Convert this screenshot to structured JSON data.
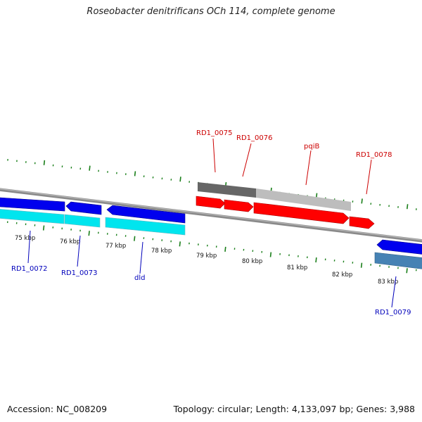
{
  "title": "Roseobacter denitrificans OCh 114, complete genome",
  "footer": {
    "accession": "Accession: NC_008209",
    "summary": "Topology: circular; Length: 4,133,097 bp; Genes: 3,988"
  },
  "colors": {
    "label_red": "#cc0000",
    "label_blue": "#0000bb",
    "tick_green": "#1a7f1a",
    "backbone": "#8a8a8a"
  },
  "scale": {
    "unit": "kbp",
    "labels": [
      "75 kbp",
      "76 kbp",
      "77 kbp",
      "78 kbp",
      "79 kbp",
      "80 kbp",
      "81 kbp",
      "82 kbp",
      "83 kbp"
    ]
  },
  "genes": {
    "top": [
      "RD1_0075",
      "RD1_0076",
      "pqiB",
      "RD1_0078"
    ],
    "bottom": [
      "RD1_0072",
      "RD1_0073",
      "dld",
      "RD1_0079"
    ]
  }
}
